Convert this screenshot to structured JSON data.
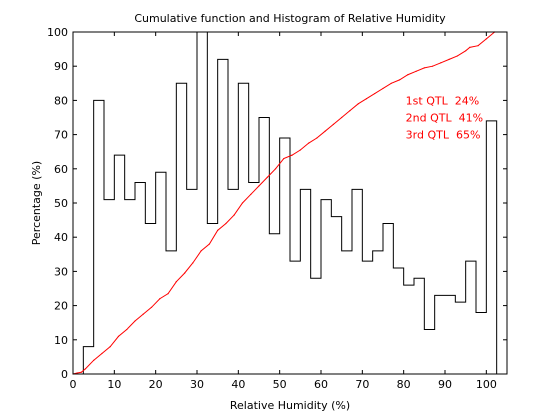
{
  "chart_data": {
    "type": "line",
    "title": "Cumulative function and Histogram of Relative Humidity",
    "xlabel": "Relative Humidity (%)",
    "ylabel": "Percentage (%)",
    "xlim": [
      0,
      105
    ],
    "ylim": [
      0,
      100
    ],
    "xticks": [
      0,
      10,
      20,
      30,
      40,
      50,
      60,
      70,
      80,
      90,
      100
    ],
    "yticks": [
      0,
      10,
      20,
      30,
      40,
      50,
      60,
      70,
      80,
      90,
      100
    ],
    "grid": false,
    "series": [
      {
        "style": "histogram-stairs",
        "color": "#000000",
        "bin_width": 2.5,
        "x": [
          0,
          2.5,
          5,
          7.5,
          10,
          12.5,
          15,
          17.5,
          20,
          22.5,
          25,
          27.5,
          30,
          32.5,
          35,
          37.5,
          40,
          42.5,
          45,
          47.5,
          50,
          52.5,
          55,
          57.5,
          60,
          62.5,
          65,
          67.5,
          70,
          72.5,
          75,
          77.5,
          80,
          82.5,
          85,
          87.5,
          90,
          92.5,
          95,
          97.5,
          100
        ],
        "values": [
          0,
          8,
          80,
          51,
          64,
          51,
          56,
          44,
          59,
          36,
          85,
          54,
          100,
          44,
          92,
          54,
          85,
          56,
          75,
          41,
          69,
          33,
          54,
          28,
          51,
          46,
          36,
          54,
          33,
          36,
          44,
          31,
          26,
          28,
          13,
          23,
          23,
          21,
          33,
          18,
          74
        ]
      },
      {
        "style": "cumulative-line",
        "color": "#ff0000",
        "x": [
          0,
          1,
          2,
          3,
          5,
          7,
          9,
          11,
          13,
          15,
          17,
          19,
          21,
          23,
          25,
          27,
          29,
          31,
          33,
          35,
          37,
          39,
          41,
          43,
          45,
          47,
          49,
          51,
          53,
          55,
          57,
          59,
          61,
          63,
          65,
          67,
          69,
          71,
          73,
          75,
          77,
          79,
          81,
          83,
          85,
          87,
          89,
          91,
          93,
          95,
          96,
          98,
          100,
          102
        ],
        "values": [
          0,
          0.3,
          0.5,
          1.5,
          4,
          6,
          8,
          11,
          13,
          15.5,
          17.5,
          19.5,
          22,
          23.5,
          27,
          29.5,
          32.5,
          36,
          38,
          42,
          44,
          46.5,
          50,
          52.5,
          55,
          57.5,
          60,
          63,
          64,
          65.5,
          67.5,
          69,
          71,
          73,
          75,
          77,
          79,
          80.5,
          82,
          83.5,
          85,
          86,
          87.5,
          88.5,
          89.5,
          90,
          91,
          92,
          93,
          94.5,
          95.5,
          96,
          98,
          100
        ]
      }
    ],
    "annotations": [
      {
        "text": "1st QTL  24%",
        "color": "#ff0000",
        "x": 80,
        "y": 80
      },
      {
        "text": "2nd QTL  41%",
        "color": "#ff0000",
        "x": 80,
        "y": 75
      },
      {
        "text": "3rd QTL  65%",
        "color": "#ff0000",
        "x": 80,
        "y": 70
      }
    ]
  }
}
